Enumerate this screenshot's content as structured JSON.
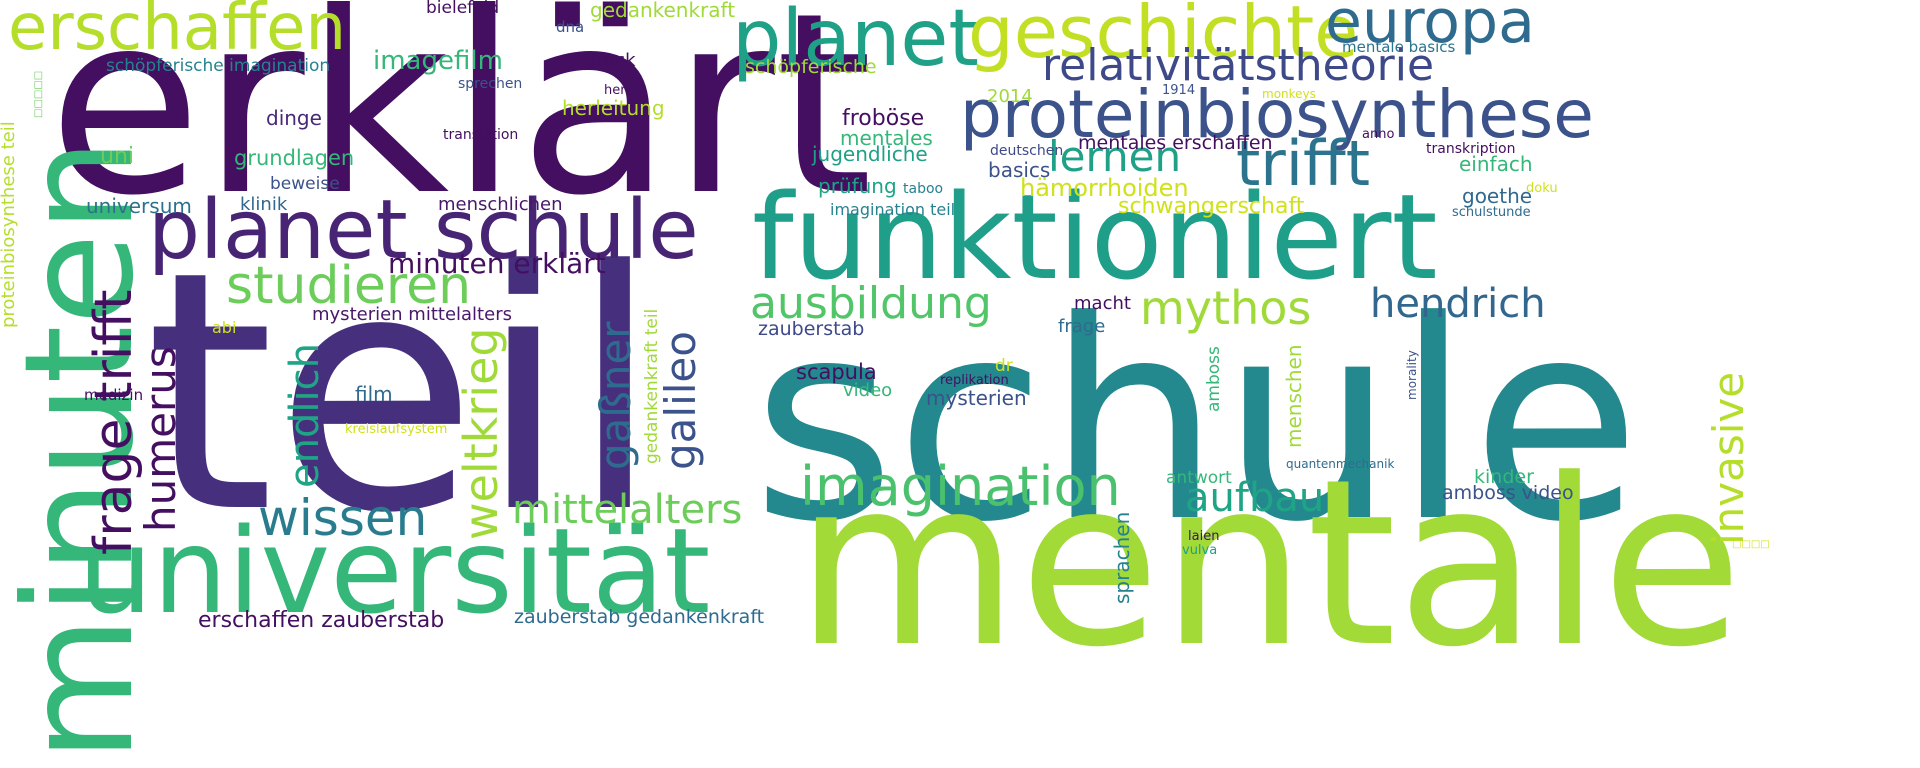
{
  "palette": {
    "dark_purple": "#440f60",
    "purple": "#48276f",
    "indigo": "#3b4d8a",
    "blue": "#2f6b8e",
    "teal_blue": "#28788e",
    "teal": "#218d8c",
    "green_teal": "#1fa187",
    "green": "#35b779",
    "light_green": "#6ccd5a",
    "lime": "#a0da39",
    "yellow": "#d0e11c"
  },
  "words": [
    "erklärt",
    "teil",
    "schule",
    "mentale",
    "minuten",
    "funktioniert",
    "universität",
    "planet schule",
    "planet",
    "geschichte",
    "europa",
    "erschaffen",
    "proteinbiosynthese",
    "relativitätstheorie",
    "trifft",
    "lernen",
    "studieren",
    "wissen",
    "imagination",
    "ausbildung",
    "mythos",
    "hendrich",
    "mittelalters",
    "aufbau",
    "frage trifft",
    "humerus",
    "endlich",
    "weltkrieg",
    "gaßner",
    "galileo",
    "invasive",
    "minuten erklärt",
    "imagefilm",
    "bielefeld",
    "gedankenkraft",
    "schöpferische imagination",
    "schöpferische",
    "dna",
    "druck",
    "sprechen",
    "herz",
    "herleitung",
    "2014",
    "translation",
    "dinge",
    "uni",
    "grundlagen",
    "beweise",
    "klinik",
    "universum",
    "menschlichen",
    "froböse",
    "mentales",
    "jugendliche",
    "prüfung",
    "taboo",
    "imagination teil",
    "mentales erschaffen",
    "deutschen",
    "basics",
    "hämorrhoiden",
    "schwangerschaft",
    "1914",
    "monkeys",
    "anno",
    "transkription",
    "einfach",
    "goethe",
    "doku",
    "schulstunde",
    "mentale basics",
    "mysterien mittelalters",
    "abi",
    "zauberstab",
    "frage",
    "macht",
    "scapula",
    "video",
    "replikation",
    "dr",
    "mysterien",
    "medizin",
    "film",
    "kreislaufsystem",
    "gedankenkraft teil",
    "amboss",
    "menschen",
    "morality",
    "quantenmechanik",
    "antwort",
    "kinder",
    "amboss video",
    "sprachen",
    "laien",
    "vulva",
    "erschaffen zauberstab",
    "zauberstab gedankenkraft",
    "proteinbiosynthese teil",
    "□□□□□",
    "□□□□"
  ]
}
